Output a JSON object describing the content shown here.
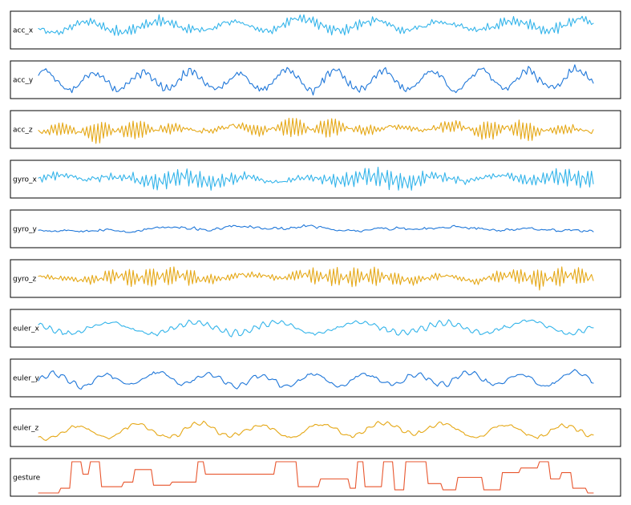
{
  "chart_data": {
    "type": "line",
    "title": "",
    "xlabel": "",
    "ylabel": "",
    "n_points": 300,
    "legend": "none",
    "grid": false,
    "colors": {
      "light_blue": "#33b4ea",
      "dark_blue": "#1f77d9",
      "gold": "#e5a817",
      "gesture_red": "#e8562e"
    },
    "panels": [
      {
        "name": "acc_x",
        "color": "#33b4ea",
        "base": 0.62,
        "slow": 0.16,
        "slow_period": 38,
        "fast": 0.16,
        "fast_period": 2.3,
        "noise": 0.12,
        "seed": 11
      },
      {
        "name": "acc_y",
        "color": "#1f77d9",
        "base": 0.5,
        "slow": 0.3,
        "slow_period": 26,
        "fast": 0.1,
        "fast_period": 3.1,
        "noise": 0.14,
        "seed": 23
      },
      {
        "name": "acc_z",
        "color": "#e5a817",
        "base": 0.52,
        "slow": 0.05,
        "slow_period": 30,
        "fast": 0.3,
        "fast_period": 2.1,
        "noise": 0.1,
        "seed": 37
      },
      {
        "name": "gyro_x",
        "color": "#33b4ea",
        "base": 0.52,
        "slow": 0.08,
        "slow_period": 34,
        "fast": 0.28,
        "fast_period": 2.4,
        "noise": 0.1,
        "seed": 41
      },
      {
        "name": "gyro_y",
        "color": "#1f77d9",
        "base": 0.5,
        "slow": 0.04,
        "slow_period": 40,
        "fast": 0.4,
        "fast_period": 2.0,
        "noise": 0.06,
        "seed": 53
      },
      {
        "name": "gyro_z",
        "color": "#e5a817",
        "base": 0.55,
        "slow": 0.05,
        "slow_period": 36,
        "fast": 0.3,
        "fast_period": 2.2,
        "noise": 0.08,
        "seed": 67
      },
      {
        "name": "euler_x",
        "color": "#33b4ea",
        "base": 0.5,
        "slow": 0.18,
        "slow_period": 45,
        "fast": 0.1,
        "fast_period": 5.0,
        "noise": 0.05,
        "seed": 71
      },
      {
        "name": "euler_y",
        "color": "#1f77d9",
        "base": 0.45,
        "slow": 0.18,
        "slow_period": 28,
        "fast": 0.08,
        "fast_period": 6.0,
        "noise": 0.05,
        "seed": 83
      },
      {
        "name": "euler_z",
        "color": "#e5a817",
        "base": 0.38,
        "slow": 0.2,
        "slow_period": 33,
        "fast": 0.06,
        "fast_period": 5.5,
        "noise": 0.04,
        "seed": 97
      }
    ],
    "gesture": {
      "name": "gesture",
      "color": "#e8562e",
      "steps": [
        [
          0,
          0.0
        ],
        [
          12,
          0.15
        ],
        [
          18,
          1.0
        ],
        [
          24,
          0.6
        ],
        [
          28,
          1.0
        ],
        [
          34,
          0.2
        ],
        [
          46,
          0.35
        ],
        [
          52,
          0.75
        ],
        [
          62,
          0.25
        ],
        [
          72,
          0.35
        ],
        [
          86,
          1.0
        ],
        [
          90,
          0.6
        ],
        [
          108,
          0.6
        ],
        [
          128,
          1.0
        ],
        [
          140,
          0.2
        ],
        [
          152,
          0.45
        ],
        [
          168,
          0.15
        ],
        [
          172,
          1.0
        ],
        [
          176,
          0.2
        ],
        [
          186,
          1.0
        ],
        [
          192,
          0.1
        ],
        [
          198,
          1.0
        ],
        [
          210,
          0.3
        ],
        [
          218,
          0.1
        ],
        [
          226,
          0.5
        ],
        [
          240,
          0.1
        ],
        [
          250,
          0.65
        ],
        [
          260,
          0.8
        ],
        [
          270,
          1.0
        ],
        [
          276,
          0.45
        ],
        [
          282,
          0.65
        ],
        [
          288,
          0.15
        ],
        [
          296,
          0.0
        ]
      ]
    }
  }
}
